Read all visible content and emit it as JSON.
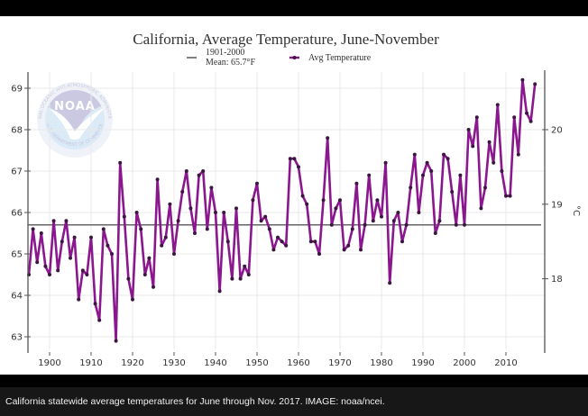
{
  "caption": "California statewide average temperatures for June through Nov. 2017. IMAGE: noaa/ncei.",
  "logo": {
    "text": "NOAA",
    "ring_top": "NATIONAL OCEANIC AND ATMOSPHERIC ADMINISTRATION",
    "ring_bottom": "U.S. DEPARTMENT OF COMMERCE"
  },
  "colors": {
    "series": "#8b178f",
    "marker": "#3b1640",
    "mean_line": "#666666",
    "grid": "#e9e9e9",
    "axis": "#555555"
  },
  "chart_data": {
    "type": "line",
    "title": "California, Average Temperature, June-November",
    "xlabel": "",
    "ylabel": "",
    "ylabel_right": "°C",
    "legend": {
      "placement": "top-center",
      "entries": [
        {
          "name": "1901-2000",
          "subtext": "Mean: 65.7°F",
          "type": "line"
        },
        {
          "name": "Avg Temperature",
          "type": "line-marker"
        }
      ]
    },
    "grid": true,
    "xlim": [
      1895,
      2017
    ],
    "ylim": [
      62.85,
      69.55
    ],
    "x_ticks": [
      1900,
      1910,
      1920,
      1930,
      1940,
      1950,
      1960,
      1970,
      1980,
      1990,
      2000,
      2010
    ],
    "y_ticks": [
      63,
      64,
      65,
      66,
      67,
      68,
      69
    ],
    "y_ticks_right_c": [
      18,
      19,
      20
    ],
    "mean_line": {
      "label": "1901-2000 Mean",
      "value": 65.7
    },
    "series": [
      {
        "name": "Avg Temperature",
        "x": [
          1895,
          1896,
          1897,
          1898,
          1899,
          1900,
          1901,
          1902,
          1903,
          1904,
          1905,
          1906,
          1907,
          1908,
          1909,
          1910,
          1911,
          1912,
          1913,
          1914,
          1915,
          1916,
          1917,
          1918,
          1919,
          1920,
          1921,
          1922,
          1923,
          1924,
          1925,
          1926,
          1927,
          1928,
          1929,
          1930,
          1931,
          1932,
          1933,
          1934,
          1935,
          1936,
          1937,
          1938,
          1939,
          1940,
          1941,
          1942,
          1943,
          1944,
          1945,
          1946,
          1947,
          1948,
          1949,
          1950,
          1951,
          1952,
          1953,
          1954,
          1955,
          1956,
          1957,
          1958,
          1959,
          1960,
          1961,
          1962,
          1963,
          1964,
          1965,
          1966,
          1967,
          1968,
          1969,
          1970,
          1971,
          1972,
          1973,
          1974,
          1975,
          1976,
          1977,
          1978,
          1979,
          1980,
          1981,
          1982,
          1983,
          1984,
          1985,
          1986,
          1987,
          1988,
          1989,
          1990,
          1991,
          1992,
          1993,
          1994,
          1995,
          1996,
          1997,
          1998,
          1999,
          2000,
          2001,
          2002,
          2003,
          2004,
          2005,
          2006,
          2007,
          2008,
          2009,
          2010,
          2011,
          2012,
          2013,
          2014,
          2015,
          2016,
          2017
        ],
        "values": [
          64.5,
          65.6,
          64.8,
          65.5,
          64.7,
          64.5,
          65.8,
          64.6,
          65.3,
          65.8,
          64.9,
          65.4,
          63.9,
          64.6,
          64.5,
          65.4,
          63.8,
          63.4,
          65.6,
          65.2,
          65.0,
          62.9,
          67.2,
          65.9,
          64.4,
          63.9,
          66.0,
          65.6,
          64.5,
          64.9,
          64.2,
          66.8,
          65.2,
          65.4,
          66.2,
          65.0,
          65.8,
          66.5,
          67.0,
          66.1,
          65.5,
          66.9,
          67.0,
          65.6,
          66.6,
          66.0,
          64.1,
          66.0,
          65.3,
          64.4,
          66.1,
          64.4,
          64.7,
          64.5,
          66.3,
          66.7,
          65.8,
          65.9,
          65.6,
          65.1,
          65.4,
          65.3,
          65.2,
          67.3,
          67.3,
          67.1,
          66.4,
          66.2,
          65.3,
          65.3,
          65.0,
          66.3,
          67.8,
          65.7,
          66.1,
          66.3,
          65.1,
          65.2,
          65.6,
          66.7,
          65.1,
          65.7,
          66.9,
          65.8,
          66.3,
          65.9,
          67.2,
          64.3,
          65.8,
          66.0,
          65.3,
          65.7,
          66.6,
          67.4,
          66.0,
          66.9,
          67.2,
          67.0,
          65.5,
          65.8,
          67.4,
          67.3,
          66.5,
          65.7,
          66.9,
          65.7,
          68.0,
          67.6,
          68.3,
          66.1,
          66.6,
          67.7,
          67.2,
          68.6,
          67.0,
          66.4,
          66.4,
          68.3,
          67.4,
          69.2,
          68.4,
          68.2,
          69.1
        ]
      }
    ]
  }
}
